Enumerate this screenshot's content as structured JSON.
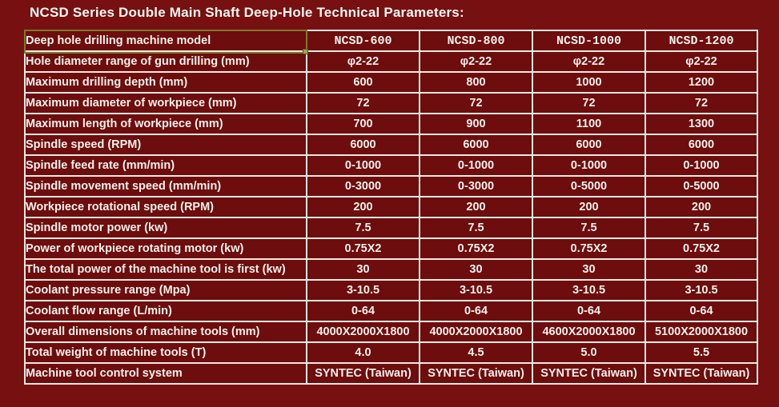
{
  "page": {
    "title": "NCSD Series Double Main Shaft Deep-Hole Technical Parameters:"
  },
  "colors": {
    "page_background": "#771010",
    "cell_background": "#6d0d0d",
    "grid_border": "#efe8e1",
    "text": "#f6f1ec",
    "selection_accent": "#7c7a31"
  },
  "table": {
    "header": {
      "label": "Deep hole drilling machine model",
      "models": [
        "NCSD-600",
        "NCSD-800",
        "NCSD-1000",
        "NCSD-1200"
      ]
    },
    "rows": [
      {
        "label": "Hole diameter range of gun drilling (mm)",
        "values": [
          "φ2-22",
          "φ2-22",
          "φ2-22",
          "φ2-22"
        ]
      },
      {
        "label": "Maximum drilling depth (mm)",
        "values": [
          "600",
          "800",
          "1000",
          "1200"
        ]
      },
      {
        "label": "Maximum diameter of workpiece (mm)",
        "values": [
          "72",
          "72",
          "72",
          "72"
        ]
      },
      {
        "label": "Maximum length of workpiece (mm)",
        "values": [
          "700",
          "900",
          "1100",
          "1300"
        ]
      },
      {
        "label": "Spindle speed (RPM)",
        "values": [
          "6000",
          "6000",
          "6000",
          "6000"
        ]
      },
      {
        "label": "Spindle feed rate (mm/min)",
        "values": [
          "0-1000",
          "0-1000",
          "0-1000",
          "0-1000"
        ]
      },
      {
        "label": "Spindle movement speed (mm/min)",
        "values": [
          "0-3000",
          "0-3000",
          "0-5000",
          "0-5000"
        ]
      },
      {
        "label": "Workpiece rotational speed (RPM)",
        "values": [
          "200",
          "200",
          "200",
          "200"
        ]
      },
      {
        "label": "Spindle motor power (kw)",
        "values": [
          "7.5",
          "7.5",
          "7.5",
          "7.5"
        ]
      },
      {
        "label": "Power of workpiece rotating motor (kw)",
        "values": [
          "0.75X2",
          "0.75X2",
          "0.75X2",
          "0.75X2"
        ]
      },
      {
        "label": "The total power of the machine tool is first (kw)",
        "values": [
          "30",
          "30",
          "30",
          "30"
        ]
      },
      {
        "label": "Coolant pressure range (Mpa)",
        "values": [
          "3-10.5",
          "3-10.5",
          "3-10.5",
          "3-10.5"
        ]
      },
      {
        "label": "Coolant flow range (L/min)",
        "values": [
          "0-64",
          "0-64",
          "0-64",
          "0-64"
        ]
      },
      {
        "label": "Overall dimensions of machine tools (mm)",
        "values": [
          "4000X2000X1800",
          "4000X2000X1800",
          "4600X2000X1800",
          "5100X2000X1800"
        ]
      },
      {
        "label": "Total weight of machine tools (T)",
        "values": [
          "4.0",
          "4.5",
          "5.0",
          "5.5"
        ]
      },
      {
        "label": "Machine tool control system",
        "values": [
          "SYNTEC (Taiwan)",
          "SYNTEC (Taiwan)",
          "SYNTEC (Taiwan)",
          "SYNTEC (Taiwan)"
        ]
      }
    ]
  }
}
